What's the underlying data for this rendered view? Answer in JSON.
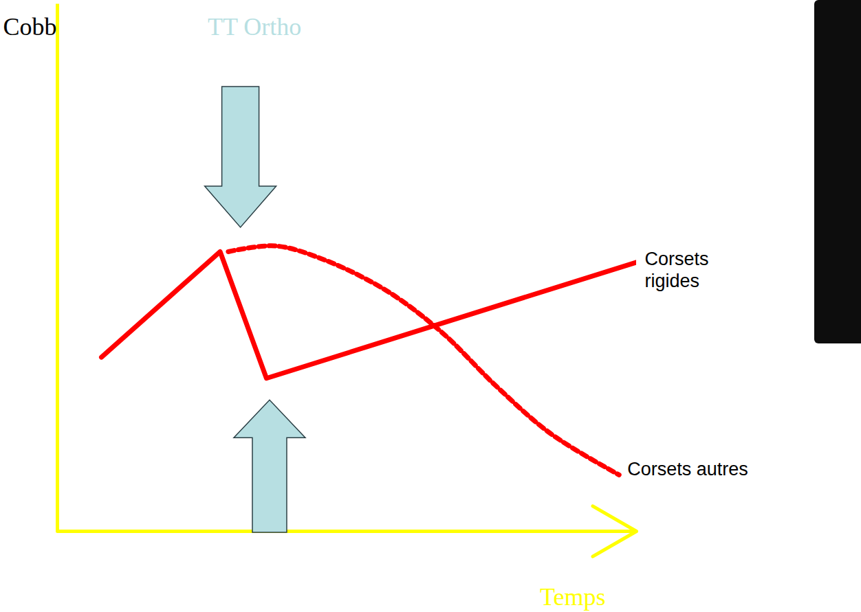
{
  "chart_data": {
    "type": "line",
    "x_label": "Temps",
    "y_label": "Cobb",
    "annotations": [
      "TT Ortho"
    ],
    "xlim": [
      0,
      10
    ],
    "ylim": [
      0,
      10
    ],
    "tick_labels": false,
    "series": [
      {
        "name": "Corsets rigides",
        "color": "#ff0000",
        "line_style": "solid",
        "x": [
          0.76,
          2.81,
          3.61,
          10.0
        ],
        "values": [
          3.3,
          5.3,
          2.9,
          5.1
        ]
      },
      {
        "name": "Corsets autres",
        "color": "#ff0000",
        "line_style": "dotted",
        "x": [
          2.95,
          3.76,
          4.6,
          5.67,
          6.62,
          7.57,
          8.52,
          9.7
        ],
        "values": [
          5.3,
          5.41,
          5.15,
          4.57,
          3.79,
          2.76,
          1.85,
          1.07
        ]
      }
    ]
  }
}
